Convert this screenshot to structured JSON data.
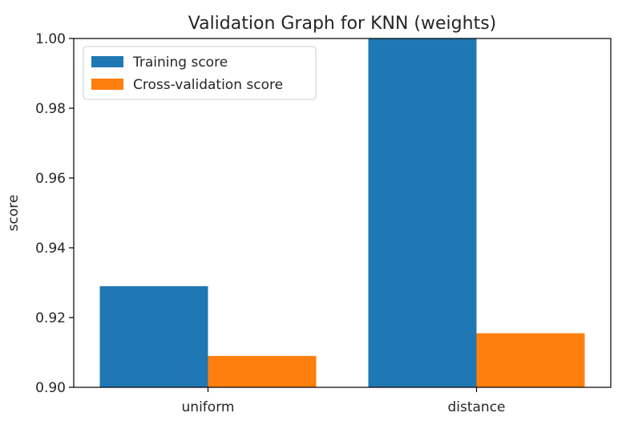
{
  "chart_data": {
    "type": "bar",
    "title": "Validation Graph for KNN (weights)",
    "xlabel": "",
    "ylabel": "score",
    "categories": [
      "uniform",
      "distance"
    ],
    "series": [
      {
        "name": "Training score",
        "values": [
          0.929,
          1.0
        ],
        "color": "#1f77b4"
      },
      {
        "name": "Cross-validation score",
        "values": [
          0.909,
          0.9155
        ],
        "color": "#ff7f0e"
      }
    ],
    "ylim": [
      0.9,
      1.0
    ],
    "yticks": [
      "0.90",
      "0.92",
      "0.94",
      "0.96",
      "0.98",
      "1.00"
    ],
    "grid": false,
    "legend": "top-left"
  }
}
